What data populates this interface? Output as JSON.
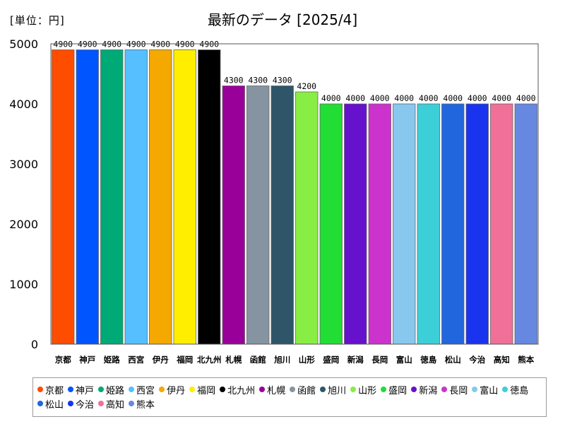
{
  "header": {
    "unit_label": "[単位：円]"
  },
  "chart_data": {
    "type": "bar",
    "title": "最新のデータ [2025/4]",
    "ylim": [
      0,
      5000
    ],
    "yticks": [
      0,
      1000,
      2000,
      3000,
      4000,
      5000
    ],
    "grid": false,
    "legend_position": "bottom",
    "categories": [
      "京都",
      "神戸",
      "姫路",
      "西宮",
      "伊丹",
      "福岡",
      "北九州",
      "札幌",
      "函館",
      "旭川",
      "山形",
      "盛岡",
      "新潟",
      "長岡",
      "富山",
      "徳島",
      "松山",
      "今治",
      "高知",
      "熊本"
    ],
    "values": [
      4900,
      4900,
      4900,
      4900,
      4900,
      4900,
      4900,
      4300,
      4300,
      4300,
      4200,
      4000,
      4000,
      4000,
      4000,
      4000,
      4000,
      4000,
      4000,
      4000
    ],
    "colors": [
      "#ff4d00",
      "#0055ff",
      "#00aa77",
      "#55bfff",
      "#f5a800",
      "#ffee00",
      "#000000",
      "#990099",
      "#8594a0",
      "#2f5568",
      "#88ee44",
      "#22dd33",
      "#6611cc",
      "#cc33cc",
      "#88c8ee",
      "#3dcfd8",
      "#2266dd",
      "#1a33ee",
      "#f07099",
      "#6688e0"
    ]
  }
}
